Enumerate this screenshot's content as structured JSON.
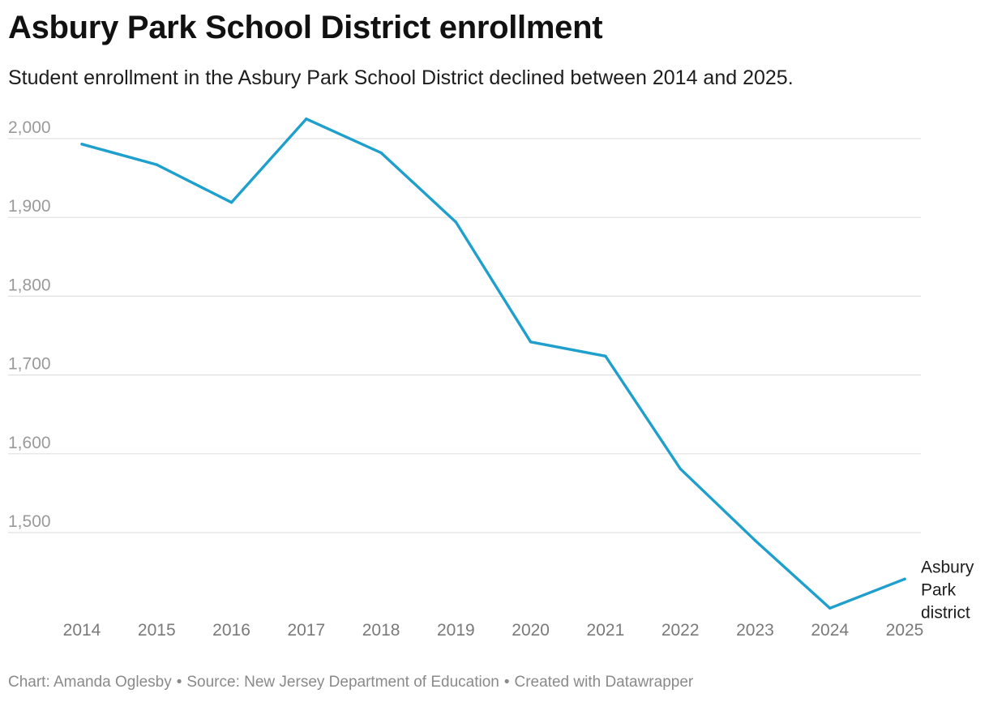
{
  "title": "Asbury Park School District enrollment",
  "subtitle": "Student enrollment in the Asbury Park School District declined between 2014 and 2025.",
  "footer": {
    "chart_credit": "Chart: Amanda Oglesby",
    "source": "Source: New Jersey Department of Education",
    "created_with": "Created with Datawrapper",
    "separator": "•"
  },
  "colors": {
    "line": "#1f9fcc",
    "grid": "#e0e0e0",
    "axis_text": "#8a8a8a"
  },
  "chart_data": {
    "type": "line",
    "title": "Asbury Park School District enrollment",
    "xlabel": "",
    "ylabel": "",
    "categories": [
      "2014",
      "2015",
      "2016",
      "2017",
      "2018",
      "2019",
      "2020",
      "2021",
      "2022",
      "2023",
      "2024",
      "2025"
    ],
    "series": [
      {
        "name": "Asbury Park district",
        "label_lines": [
          "Asbury",
          "Park",
          "district"
        ],
        "values": [
          1993,
          1967,
          1919,
          2025,
          1982,
          1894,
          1742,
          1724,
          1581,
          1490,
          1404,
          1441
        ]
      }
    ],
    "yticks": [
      1500,
      1600,
      1700,
      1800,
      1900,
      2000
    ],
    "ytick_labels": [
      "1,500",
      "1,600",
      "1,700",
      "1,800",
      "1,900",
      "2,000"
    ],
    "ylim": [
      1396,
      2027
    ],
    "grid": true
  }
}
